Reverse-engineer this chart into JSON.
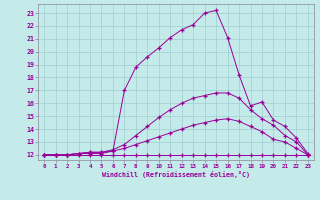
{
  "xlabel": "Windchill (Refroidissement éolien,°C)",
  "bg_color": "#c5eaea",
  "line_color": "#990099",
  "grid_color": "#9ecece",
  "axis_color": "#888899",
  "xlim": [
    -0.5,
    23.5
  ],
  "ylim": [
    11.6,
    23.7
  ],
  "xtick_vals": [
    0,
    1,
    2,
    3,
    4,
    5,
    6,
    7,
    8,
    9,
    10,
    11,
    12,
    13,
    14,
    15,
    16,
    17,
    18,
    19,
    20,
    21,
    22,
    23
  ],
  "ytick_vals": [
    12,
    13,
    14,
    15,
    16,
    17,
    18,
    19,
    20,
    21,
    22,
    23
  ],
  "line1_x": [
    0,
    1,
    2,
    3,
    4,
    5,
    6,
    7,
    8,
    9,
    10,
    11,
    12,
    13,
    14,
    15,
    16,
    17,
    18,
    19,
    20,
    21,
    22,
    23
  ],
  "line1_y": [
    12,
    12,
    12,
    12,
    12,
    12,
    12,
    12,
    12,
    12,
    12,
    12,
    12,
    12,
    12,
    12,
    12,
    12,
    12,
    12,
    12,
    12,
    12,
    12
  ],
  "line2_x": [
    0,
    1,
    2,
    3,
    4,
    5,
    6,
    7,
    8,
    9,
    10,
    11,
    12,
    13,
    14,
    15,
    16,
    17,
    18,
    19,
    20,
    21,
    22,
    23
  ],
  "line2_y": [
    12,
    12,
    12,
    12.1,
    12.2,
    12.2,
    12.3,
    12.5,
    12.8,
    13.1,
    13.4,
    13.7,
    14.0,
    14.3,
    14.5,
    14.7,
    14.8,
    14.6,
    14.2,
    13.8,
    13.2,
    13.0,
    12.5,
    12.0
  ],
  "line3_x": [
    0,
    1,
    2,
    3,
    4,
    5,
    6,
    7,
    8,
    9,
    10,
    11,
    12,
    13,
    14,
    15,
    16,
    17,
    18,
    19,
    20,
    21,
    22,
    23
  ],
  "line3_y": [
    12,
    12,
    12,
    12.1,
    12.2,
    12.2,
    12.4,
    12.8,
    13.5,
    14.2,
    14.9,
    15.5,
    16.0,
    16.4,
    16.6,
    16.8,
    16.8,
    16.4,
    15.5,
    14.8,
    14.3,
    13.5,
    13.0,
    12.0
  ],
  "line4_x": [
    0,
    1,
    2,
    3,
    4,
    5,
    6,
    7,
    8,
    9,
    10,
    11,
    12,
    13,
    14,
    15,
    16,
    17,
    18,
    19,
    20,
    21,
    22,
    23
  ],
  "line4_y": [
    12,
    12,
    12,
    12.1,
    12.1,
    12.1,
    12.3,
    17.0,
    18.8,
    19.6,
    20.3,
    21.1,
    21.7,
    22.1,
    23.0,
    23.2,
    21.1,
    18.2,
    15.8,
    16.1,
    14.7,
    14.2,
    13.3,
    12.1
  ]
}
